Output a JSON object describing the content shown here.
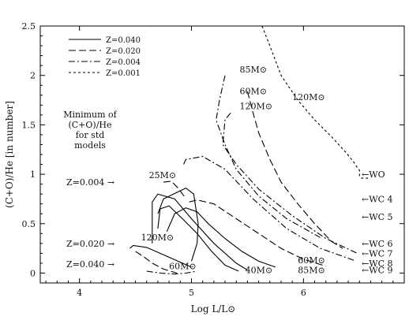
{
  "chart_data": {
    "type": "line",
    "xlabel": "Log L/L⊙",
    "ylabel": "(C+O)/He [in number]",
    "xlim": [
      3.65,
      6.9
    ],
    "ylim": [
      -0.1,
      2.5
    ],
    "xticks": [
      4,
      5,
      6
    ],
    "yticks": [
      0,
      0.5,
      1,
      1.5,
      2,
      2.5
    ],
    "xticklabels": [
      "4",
      "5",
      "6"
    ],
    "yticklabels": [
      "0",
      "0.5",
      "1",
      "1.5",
      "2",
      "2.5"
    ],
    "legend": {
      "placement": "top-left",
      "entries": [
        {
          "label": "Z=0.040",
          "style": "solid"
        },
        {
          "label": "Z=0.020",
          "style": "long-dash"
        },
        {
          "label": "Z=0.004",
          "style": "dash-dot"
        },
        {
          "label": "Z=0.001",
          "style": "short-dash"
        }
      ]
    },
    "note_lines": [
      "Minimum of",
      "(C+O)/He",
      "for std",
      "models"
    ],
    "min_markers": [
      {
        "label": "Z=0.004 →",
        "y": 0.92
      },
      {
        "label": "Z=0.020 →",
        "y": 0.3
      },
      {
        "label": "Z=0.040 →",
        "y": 0.09
      }
    ],
    "wr_types": [
      {
        "label": "←WO",
        "y": 1.0
      },
      {
        "label": "←WC 4",
        "y": 0.75
      },
      {
        "label": "←WC 5",
        "y": 0.57
      },
      {
        "label": "←WC 6",
        "y": 0.3
      },
      {
        "label": "←WC 7",
        "y": 0.2
      },
      {
        "label": "←WC 8",
        "y": 0.1
      },
      {
        "label": "←WC 9",
        "y": 0.03
      }
    ],
    "mass_labels": [
      {
        "label": "85M⊙",
        "x": 5.43,
        "y": 2.03
      },
      {
        "label": "60M⊙",
        "x": 5.43,
        "y": 1.81
      },
      {
        "label": "120M⊙",
        "x": 5.43,
        "y": 1.66
      },
      {
        "label": "120M⊙",
        "x": 5.9,
        "y": 1.75
      },
      {
        "label": "25M⊙",
        "x": 4.62,
        "y": 0.96
      },
      {
        "label": "120M⊙",
        "x": 4.55,
        "y": 0.33
      },
      {
        "label": "60M⊙",
        "x": 4.8,
        "y": 0.04
      },
      {
        "label": "40M⊙",
        "x": 5.48,
        "y": 0.0
      },
      {
        "label": "60M⊙",
        "x": 5.95,
        "y": 0.1
      },
      {
        "label": "85M⊙",
        "x": 5.95,
        "y": 0.0
      }
    ],
    "series": [
      {
        "style": "short-dash",
        "x": [
          5.63,
          5.7,
          5.8,
          5.95,
          6.1,
          6.25,
          6.38,
          6.45,
          6.48,
          6.5,
          6.5,
          6.52,
          6.6
        ],
        "y": [
          2.5,
          2.3,
          2.0,
          1.75,
          1.55,
          1.38,
          1.22,
          1.12,
          1.07,
          1.04,
          0.98,
          0.96,
          0.96
        ]
      },
      {
        "style": "long-dash",
        "x": [
          5.5,
          5.55,
          5.6,
          5.7,
          5.8,
          5.95,
          6.1,
          6.25,
          6.35
        ],
        "y": [
          1.84,
          1.62,
          1.42,
          1.15,
          0.92,
          0.7,
          0.5,
          0.32,
          0.25
        ]
      },
      {
        "style": "dash-dot",
        "x": [
          5.3,
          5.25,
          5.22,
          5.3,
          5.4,
          5.6,
          5.85,
          6.15
        ],
        "y": [
          2.0,
          1.75,
          1.55,
          1.3,
          1.05,
          0.78,
          0.55,
          0.36
        ]
      },
      {
        "style": "dash-dot",
        "x": [
          5.35,
          5.3,
          5.28,
          5.4,
          5.6,
          5.9,
          6.2,
          6.48
        ],
        "y": [
          1.62,
          1.55,
          1.3,
          1.1,
          0.85,
          0.58,
          0.35,
          0.2
        ]
      },
      {
        "style": "dash-dot",
        "x": [
          4.93,
          4.95,
          5.1,
          5.3,
          5.55,
          5.85,
          6.15,
          6.45
        ],
        "y": [
          1.1,
          1.15,
          1.18,
          1.05,
          0.75,
          0.45,
          0.25,
          0.13
        ]
      },
      {
        "style": "long-dash",
        "x": [
          4.98,
          5.05,
          5.2,
          5.4,
          5.6,
          5.8,
          6.0,
          6.2
        ],
        "y": [
          0.72,
          0.74,
          0.7,
          0.55,
          0.4,
          0.25,
          0.14,
          0.07
        ]
      },
      {
        "style": "solid",
        "x": [
          4.78,
          4.85,
          4.95,
          5.05,
          5.15,
          5.3,
          5.45,
          5.6,
          5.75
        ],
        "y": [
          0.42,
          0.6,
          0.66,
          0.62,
          0.5,
          0.35,
          0.22,
          0.12,
          0.06
        ]
      },
      {
        "style": "solid",
        "x": [
          4.7,
          4.75,
          4.95,
          5.02,
          5.06,
          5.05,
          5.0
        ],
        "y": [
          0.6,
          0.75,
          0.86,
          0.8,
          0.5,
          0.3,
          0.12
        ]
      },
      {
        "style": "solid",
        "x": [
          4.7,
          4.72,
          4.8,
          4.92,
          5.05,
          5.18,
          5.3,
          5.42
        ],
        "y": [
          0.45,
          0.65,
          0.68,
          0.55,
          0.4,
          0.22,
          0.08,
          0.02
        ]
      },
      {
        "style": "solid",
        "x": [
          4.65,
          4.65,
          4.7,
          4.85,
          5.0,
          5.2,
          5.4,
          5.5
        ],
        "y": [
          0.3,
          0.72,
          0.8,
          0.75,
          0.55,
          0.3,
          0.1,
          0.03
        ]
      },
      {
        "style": "long-dash",
        "x": [
          4.75,
          4.82,
          4.88,
          4.92,
          4.95
        ],
        "y": [
          0.92,
          0.93,
          0.86,
          0.8,
          0.76
        ]
      },
      {
        "style": "solid",
        "x": [
          4.45,
          4.48,
          4.6,
          4.8,
          5.0
        ],
        "y": [
          0.25,
          0.28,
          0.26,
          0.16,
          0.06
        ]
      },
      {
        "style": "long-dash",
        "x": [
          4.5,
          4.58,
          4.65,
          4.75,
          4.87
        ],
        "y": [
          0.22,
          0.16,
          0.1,
          0.04,
          0.0
        ]
      },
      {
        "style": "dash-dot",
        "x": [
          4.6,
          4.72,
          4.85,
          4.95,
          5.05
        ],
        "y": [
          0.02,
          0.0,
          -0.01,
          0.0,
          0.02
        ]
      }
    ]
  }
}
